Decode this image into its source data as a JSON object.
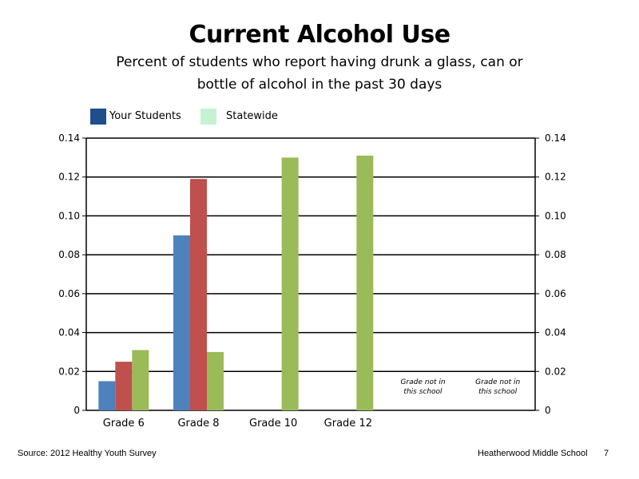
{
  "title": "Current Alcohol Use",
  "subtitle_line1": "Percent of students who report having drunk a glass, can or",
  "subtitle_line2": "bottle of alcohol in the past 30 days",
  "legend": [
    {
      "label": "Your Students",
      "color": "#1f4e8c"
    },
    {
      "label": "Statewide",
      "color": "#c6f2d4"
    }
  ],
  "footer": {
    "source": "Source: 2012 Healthy Youth Survey",
    "school": "Heatherwood Middle  School",
    "page": "7"
  },
  "chart_data": {
    "type": "bar",
    "categories": [
      "Grade 6",
      "Grade 8",
      "Grade 10",
      "Grade 12",
      "",
      ""
    ],
    "series": [
      {
        "values": [
          0.015,
          0.09,
          null,
          null,
          null,
          null
        ],
        "color": "#4f81bd"
      },
      {
        "values": [
          0.025,
          0.119,
          null,
          null,
          null,
          null
        ],
        "color": "#c0504d"
      },
      {
        "values": [
          0.031,
          0.03,
          0.13,
          0.131,
          null,
          null
        ],
        "color": "#9bbb59"
      }
    ],
    "annotations": [
      {
        "category_index": 4,
        "lines": [
          "Grade not in",
          "this school"
        ]
      },
      {
        "category_index": 5,
        "lines": [
          "Grade not in",
          "this school"
        ]
      }
    ],
    "ylim": [
      0,
      0.14
    ],
    "yticks": [
      "0",
      "0.02",
      "0.04",
      "0.06",
      "0.08",
      "0.10",
      "0.12",
      "0.14"
    ],
    "ytick_values": [
      0,
      0.02,
      0.04,
      0.06,
      0.08,
      0.1,
      0.12,
      0.14
    ],
    "grid": true,
    "secondary_axis": true,
    "xlabel": "",
    "ylabel": ""
  }
}
